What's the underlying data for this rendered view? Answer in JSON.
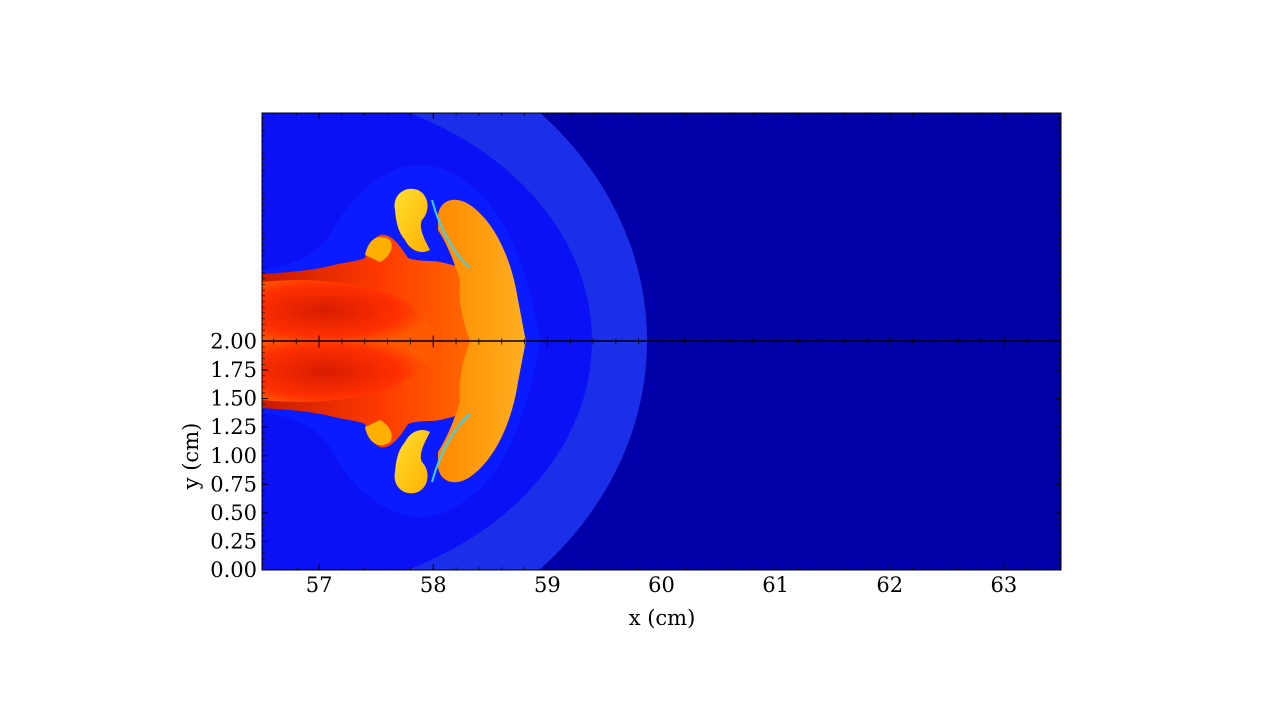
{
  "chart_data": {
    "type": "heatmap",
    "title": "",
    "xlabel": "x  (cm)",
    "ylabel": "y  (cm)",
    "xlim": [
      56.5,
      63.5
    ],
    "ylim": [
      0.0,
      4.0
    ],
    "x_ticks": [
      "57",
      "58",
      "59",
      "60",
      "61",
      "62",
      "63"
    ],
    "y_ticks": [
      "0.00",
      "0.25",
      "0.50",
      "0.75",
      "1.00",
      "1.25",
      "1.50",
      "1.75",
      "2.00"
    ],
    "mirror_line_y": 2.0,
    "colormap": "jet",
    "colors": {
      "background": "#0000a8",
      "shock_region": "#1c2fe8",
      "inner_blue": "#0a12f5",
      "jet_core": "#e02000",
      "jet_mid": "#ff4a00",
      "jet_edge": "#ff8a00",
      "lobe": "#ffd21a",
      "rim": "#35d4ff"
    },
    "grid": false
  }
}
